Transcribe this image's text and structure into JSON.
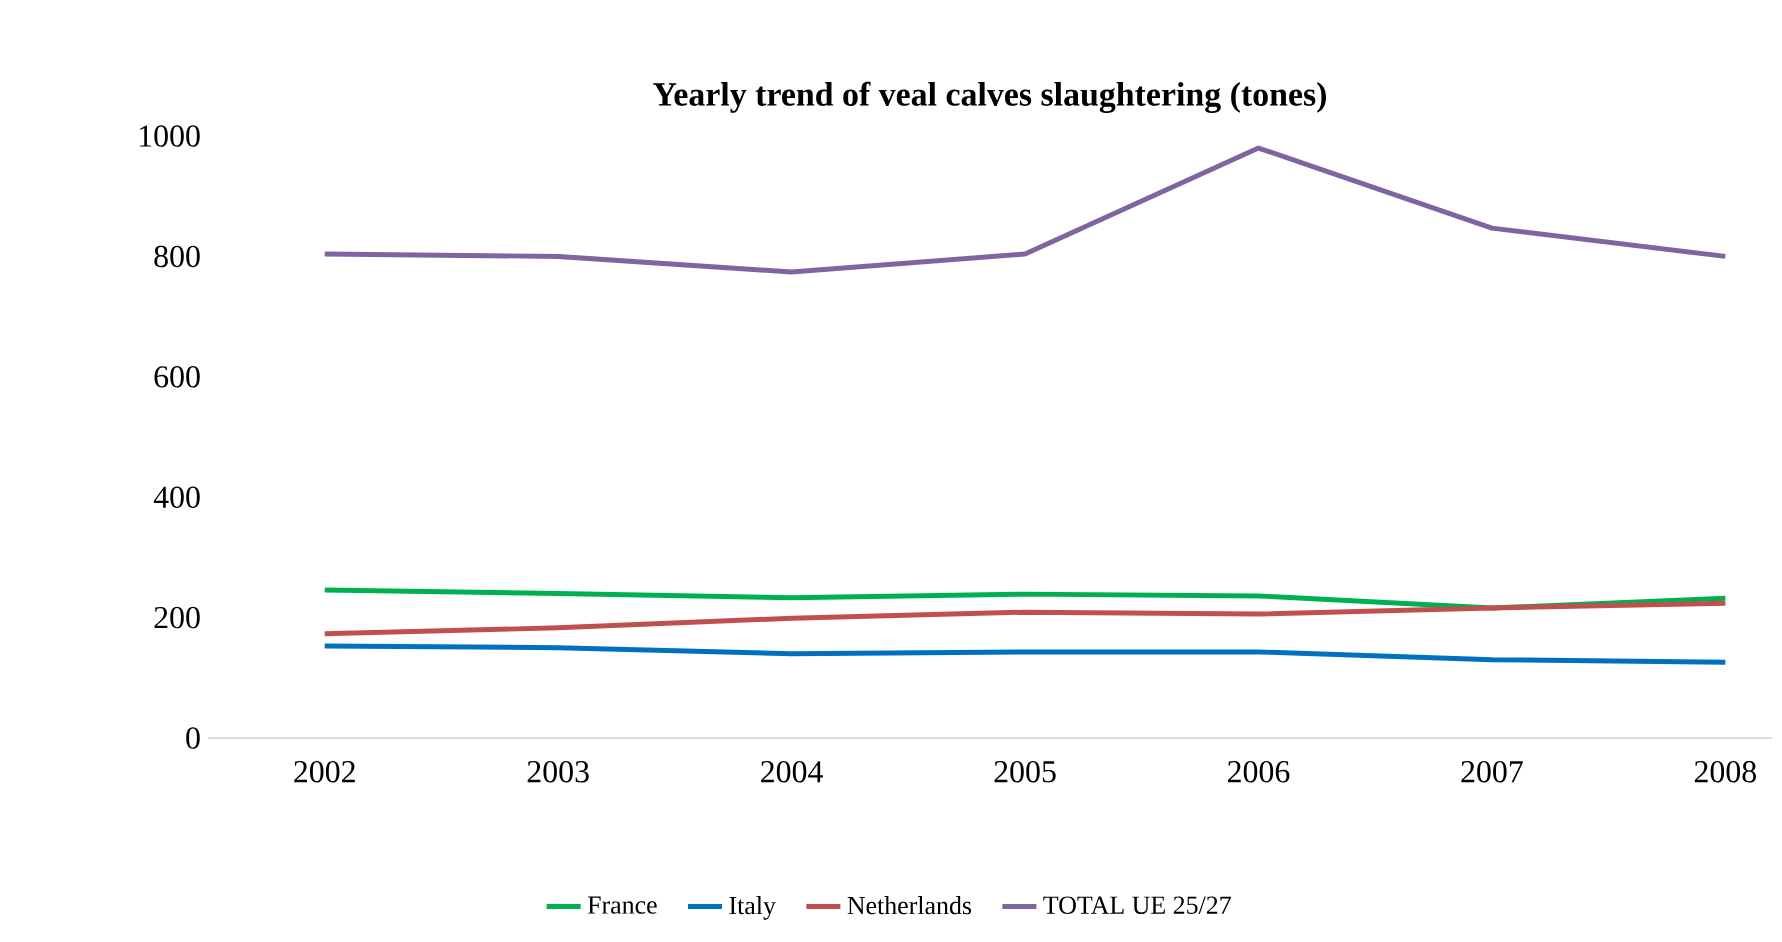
{
  "chart_data": {
    "type": "line",
    "title": "**Yearly trend of veal calves slaughtering (tones)**",
    "categories": [
      "2002",
      "2003",
      "2004",
      "2005",
      "2006",
      "2007",
      "2008"
    ],
    "series": [
      {
        "name": "France",
        "color": "#00b050",
        "values": [
          246,
          240,
          233,
          239,
          236,
          216,
          232
        ]
      },
      {
        "name": "Italy",
        "color": "#0070c0",
        "values": [
          153,
          150,
          140,
          143,
          143,
          130,
          126
        ]
      },
      {
        "name": "Netherlands",
        "color": "#c0504d",
        "values": [
          173,
          183,
          199,
          209,
          206,
          216,
          224
        ]
      },
      {
        "name": "TOTAL UE 25/27",
        "color": "#8064a2",
        "values": [
          804,
          800,
          774,
          804,
          980,
          847,
          800
        ]
      }
    ],
    "ylim": [
      0,
      1000
    ],
    "yticks": [
      0,
      200,
      400,
      600,
      800,
      1000
    ],
    "legend": "bottom",
    "marker": "none",
    "line_style": "solid"
  }
}
